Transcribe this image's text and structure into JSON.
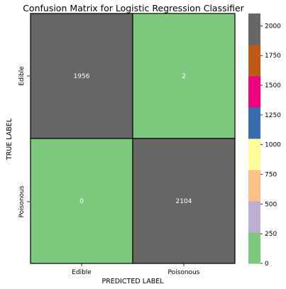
{
  "chart_data": {
    "type": "heatmap",
    "title": "Confusion Matrix for Logistic Regression Classifier",
    "xlabel": "PREDICTED LABEL",
    "ylabel": "TRUE LABEL",
    "x_categories": [
      "Edible",
      "Poisonous"
    ],
    "y_categories": [
      "Edible",
      "Poisonous"
    ],
    "matrix": [
      [
        1956,
        2
      ],
      [
        0,
        2104
      ]
    ],
    "colormap": "Accent",
    "colorbar": {
      "range": [
        0,
        2104
      ],
      "ticks": [
        0,
        250,
        500,
        750,
        1000,
        1250,
        1500,
        1750,
        2000
      ],
      "colors": [
        "#7fc97f",
        "#beaed4",
        "#fdc086",
        "#ffff99",
        "#386cb0",
        "#f0027f",
        "#bf5b17",
        "#666666"
      ]
    },
    "cell_border_color": "#000000",
    "annotation_text_color": "#ffffff"
  }
}
